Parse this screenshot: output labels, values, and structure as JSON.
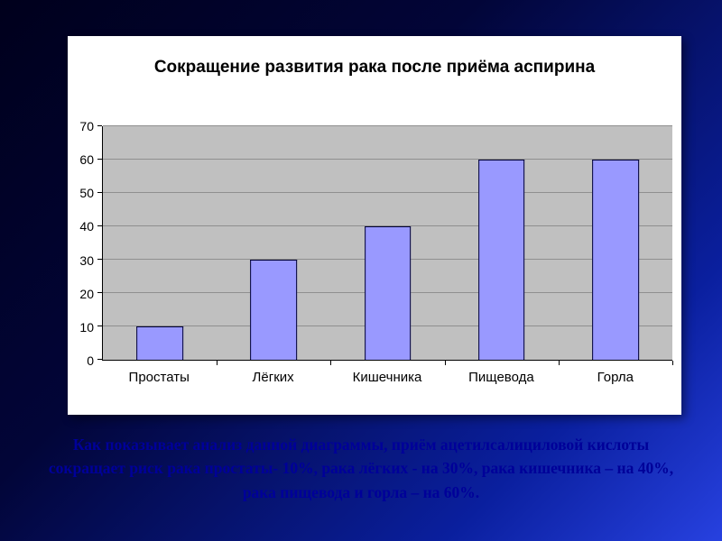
{
  "slide": {
    "caption": "Как показывает анализ данной диаграммы, приём ацетилсалициловой кислоты сокращает риск рака простаты- 10%, рака лёгких -  на 30%, рака кишечника – на 40%, рака пищевода и горла – на 60%."
  },
  "chart_data": {
    "type": "bar",
    "title": "Сокращение развития рака после приёма аспирина",
    "categories": [
      "Простаты",
      "Лёгких",
      "Кишечника",
      "Пищевода",
      "Горла"
    ],
    "values": [
      10,
      30,
      40,
      60,
      60
    ],
    "xlabel": "",
    "ylabel": "",
    "ylim": [
      0,
      70
    ],
    "ytick_step": 10,
    "grid": true,
    "legend_position": "none",
    "bar_color": "#9999ff",
    "bar_border_color": "#000033",
    "plot_background": "#c0c0c0",
    "panel_background": "#ffffff",
    "caption_color": "#000099"
  }
}
